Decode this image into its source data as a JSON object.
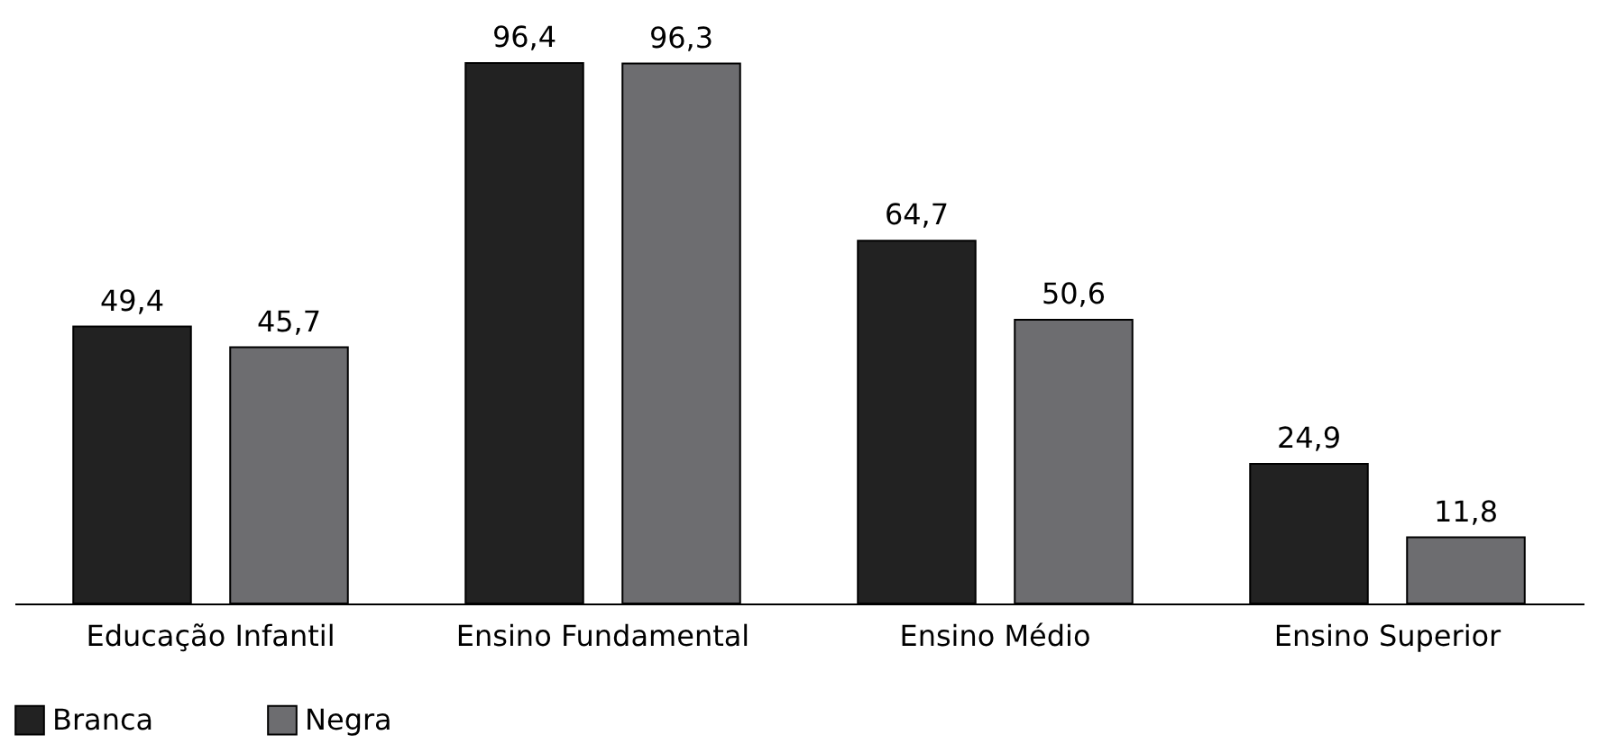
{
  "chart_data": {
    "type": "bar",
    "categories": [
      "Educação Infantil",
      "Ensino Fundamental",
      "Ensino Médio",
      "Ensino Superior"
    ],
    "series": [
      {
        "name": "Branca",
        "color": "#222222",
        "values": [
          49.4,
          96.4,
          64.7,
          24.9
        ],
        "value_labels": [
          "49,4",
          "96,4",
          "64,7",
          "24,9"
        ]
      },
      {
        "name": "Negra",
        "color": "#6d6d70",
        "values": [
          45.7,
          96.3,
          50.6,
          11.8
        ],
        "value_labels": [
          "45,7",
          "96,3",
          "50,6",
          "11,8"
        ]
      }
    ],
    "legend": "bottom",
    "grid": false
  }
}
